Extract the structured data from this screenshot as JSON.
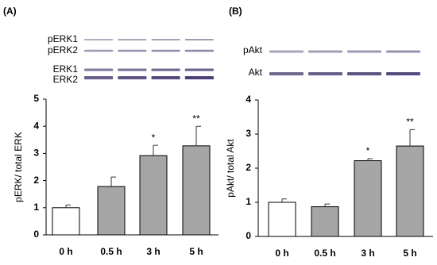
{
  "chart_data": [
    {
      "type": "bar",
      "panel_label": "(A)",
      "blot_labels": [
        "pERK1",
        "pERK2",
        "ERK1",
        "ERK2"
      ],
      "y_label": "pERK/ total ERK",
      "categories": [
        "0 h",
        "0.5 h",
        "3 h",
        "5 h"
      ],
      "values": [
        1.0,
        1.78,
        2.92,
        3.28
      ],
      "errors": [
        0.1,
        0.35,
        0.38,
        0.72
      ],
      "colors": [
        "#ffffff",
        "#a6a6a6",
        "#a6a6a6",
        "#a6a6a6"
      ],
      "annotations": [
        null,
        null,
        "*",
        "**"
      ],
      "ylim": [
        0,
        5
      ],
      "yticks": [
        0,
        1,
        2,
        3,
        4,
        5
      ]
    },
    {
      "type": "bar",
      "panel_label": "(B)",
      "blot_labels": [
        "pAkt",
        "Akt"
      ],
      "y_label": "pAkt/ total Akt",
      "categories": [
        "0 h",
        "0.5 h",
        "3 h",
        "5 h"
      ],
      "values": [
        1.0,
        0.87,
        2.22,
        2.65
      ],
      "errors": [
        0.1,
        0.08,
        0.06,
        0.48
      ],
      "colors": [
        "#ffffff",
        "#a6a6a6",
        "#a6a6a6",
        "#a6a6a6"
      ],
      "annotations": [
        null,
        null,
        "*",
        "**"
      ],
      "ylim": [
        0,
        4
      ],
      "yticks": [
        0,
        1,
        2,
        3,
        4
      ]
    }
  ]
}
